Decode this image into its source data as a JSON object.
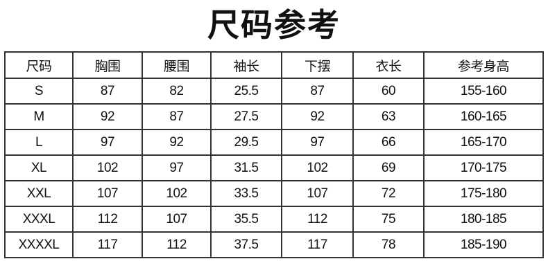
{
  "title": "尺码参考",
  "table": {
    "headers": [
      "尺码",
      "胸围",
      "腰围",
      "袖长",
      "下摆",
      "衣长",
      "参考身高"
    ],
    "rows": [
      [
        "S",
        "87",
        "82",
        "25.5",
        "87",
        "60",
        "155-160"
      ],
      [
        "M",
        "92",
        "87",
        "27.5",
        "92",
        "63",
        "160-165"
      ],
      [
        "L",
        "97",
        "92",
        "29.5",
        "97",
        "66",
        "165-170"
      ],
      [
        "XL",
        "102",
        "97",
        "31.5",
        "102",
        "69",
        "170-175"
      ],
      [
        "XXL",
        "107",
        "102",
        "33.5",
        "107",
        "72",
        "175-180"
      ],
      [
        "XXXL",
        "112",
        "107",
        "35.5",
        "112",
        "75",
        "180-185"
      ],
      [
        "XXXXL",
        "117",
        "112",
        "37.5",
        "117",
        "78",
        "185-190"
      ]
    ]
  }
}
